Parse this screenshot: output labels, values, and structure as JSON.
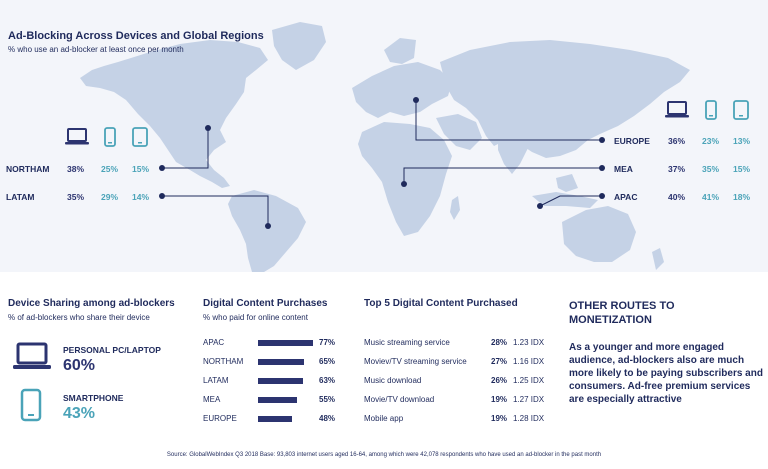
{
  "header": {
    "title": "Ad-Blocking Across Devices and Global Regions",
    "subtitle": "% who use an ad-blocker at least once per month"
  },
  "devices": {
    "icons": [
      "laptop-icon",
      "smartphone-icon",
      "tablet-icon"
    ]
  },
  "regions": {
    "northam": {
      "label": "NORTHAM",
      "laptop": "38%",
      "phone": "25%",
      "tablet": "15%"
    },
    "latam": {
      "label": "LATAM",
      "laptop": "35%",
      "phone": "29%",
      "tablet": "14%"
    },
    "europe": {
      "label": "EUROPE",
      "laptop": "36%",
      "phone": "23%",
      "tablet": "13%"
    },
    "mea": {
      "label": "MEA",
      "laptop": "37%",
      "phone": "35%",
      "tablet": "15%"
    },
    "apac": {
      "label": "APAC",
      "laptop": "40%",
      "phone": "41%",
      "tablet": "18%"
    }
  },
  "device_sharing": {
    "title": "Device Sharing among ad-blockers",
    "subtitle": "% of ad-blockers who share their device",
    "pc_label": "PERSONAL PC/LAPTOP",
    "pc_value": "60%",
    "phone_label": "SMARTPHONE",
    "phone_value": "43%"
  },
  "content_purchases": {
    "title": "Digital Content Purchases",
    "subtitle": "% who paid for online content",
    "rows": [
      {
        "name": "APAC",
        "value": 77,
        "label": "77%"
      },
      {
        "name": "NORTHAM",
        "value": 65,
        "label": "65%"
      },
      {
        "name": "LATAM",
        "value": 63,
        "label": "63%"
      },
      {
        "name": "MEA",
        "value": 55,
        "label": "55%"
      },
      {
        "name": "EUROPE",
        "value": 48,
        "label": "48%"
      }
    ]
  },
  "top5": {
    "title": "Top 5 Digital Content Purchased",
    "rows": [
      {
        "name": "Music streaming service",
        "pct": "28%",
        "idx": "1.23 IDX"
      },
      {
        "name": "Moviev/TV streaming service",
        "pct": "27%",
        "idx": "1.16 IDX"
      },
      {
        "name": "Music download",
        "pct": "26%",
        "idx": "1.25 IDX"
      },
      {
        "name": "Movie/TV download",
        "pct": "19%",
        "idx": "1.27 IDX"
      },
      {
        "name": "Mobile app",
        "pct": "19%",
        "idx": "1.28 IDX"
      }
    ]
  },
  "other_routes": {
    "title": "OTHER ROUTES TO MONETIZATION",
    "body": "As a younger and more engaged audience, ad-blockers also are much more likely to be paying subscribers and consumers. Ad-free premium services are especially attractive"
  },
  "source": "Source: GlobalWebIndex Q3 2018 Base: 93,803 internet users aged 16-64, among which were 42,078 respondents who have used an ad-blocker in the past month",
  "colors": {
    "navy": "#2c3470",
    "teal": "#4aa3b8",
    "map": "#c5d2e6",
    "background": "#f3f5fa"
  }
}
